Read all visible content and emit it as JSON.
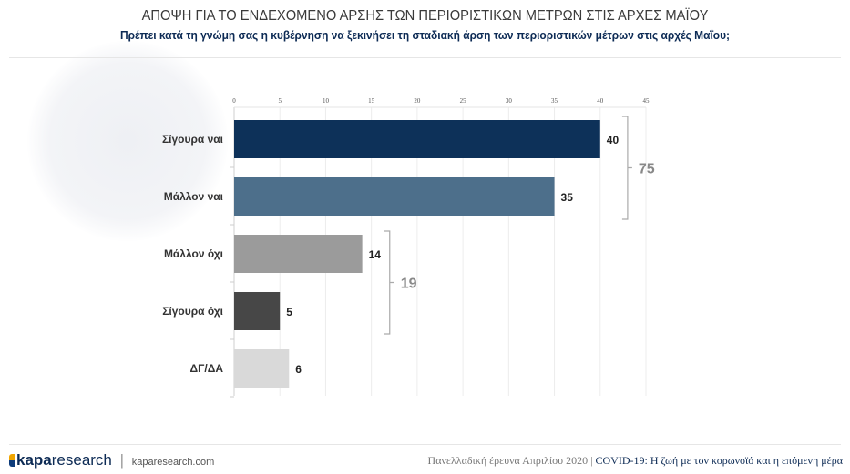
{
  "header": {
    "title": "ΑΠΟΨΗ ΓΙΑ ΤΟ ΕΝΔΕΧΟΜΕΝΟ ΑΡΣΗΣ ΤΩΝ ΠΕΡΙΟΡΙΣΤΙΚΩΝ ΜΕΤΡΩΝ ΣΤΙΣ ΑΡΧΕΣ ΜΑΪΟΥ",
    "subtitle": "Πρέπει κατά τη γνώμη σας η κυβέρνηση να ξεκινήσει τη σταδιακή άρση των περιοριστικών μέτρων στις αρχές Μαΐου;"
  },
  "chart_data": {
    "type": "bar",
    "orientation": "horizontal",
    "title": "ΑΠΟΨΗ ΓΙΑ ΤΟ ΕΝΔΕΧΟΜΕΝΟ ΑΡΣΗΣ ΤΩΝ ΠΕΡΙΟΡΙΣΤΙΚΩΝ ΜΕΤΡΩΝ ΣΤΙΣ ΑΡΧΕΣ ΜΑΪΟΥ",
    "categories": [
      "Σίγουρα ναι",
      "Μάλλον ναι",
      "Μάλλον όχι",
      "Σίγουρα όχι",
      "ΔΓ/ΔΑ"
    ],
    "values": [
      40,
      35,
      14,
      5,
      6
    ],
    "colors": [
      "#0d3159",
      "#4d6f8b",
      "#9b9b9b",
      "#474747",
      "#d9d9d9"
    ],
    "xlim": [
      0,
      45
    ],
    "xticks": [
      0,
      5,
      10,
      15,
      20,
      25,
      30,
      35,
      40,
      45
    ],
    "grid": true,
    "annotations": [
      {
        "label": "75",
        "spans": [
          0,
          1
        ]
      },
      {
        "label": "19",
        "spans": [
          2,
          3
        ]
      }
    ]
  },
  "footer": {
    "brand_bold": "kapa",
    "brand_light": "research",
    "separator": "|",
    "url": "kaparesearch.com",
    "survey": "Πανελλαδική έρευνα Απριλίου 2020",
    "survey_sep": "|",
    "project": "COVID-19: Η ζωή με τον κορωνοϊό και η επόμενη μέρα"
  }
}
